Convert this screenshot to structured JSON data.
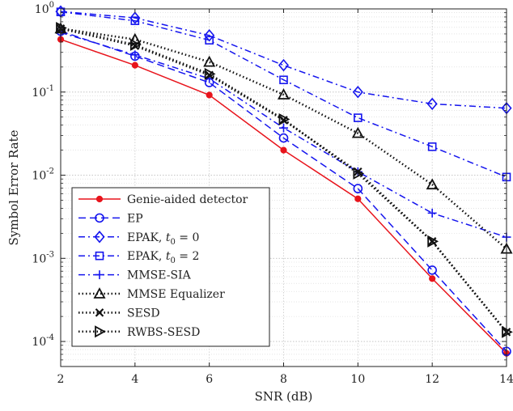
{
  "chart_data": {
    "type": "line",
    "title": "",
    "xlabel": "SNR (dB)",
    "ylabel": "Symbol Error Rate",
    "x": [
      2,
      4,
      6,
      8,
      10,
      12,
      14
    ],
    "xlim": [
      2,
      14
    ],
    "ylim": [
      5e-05,
      1
    ],
    "yscale": "log",
    "grid": true,
    "minor_grid": true,
    "legend_position": "bottom-left",
    "x_ticks": [
      "2",
      "4",
      "6",
      "8",
      "10",
      "12",
      "14"
    ],
    "y_ticks": [
      {
        "value": 0.0001,
        "mantissa": "10",
        "exp": "-4"
      },
      {
        "value": 0.001,
        "mantissa": "10",
        "exp": "-3"
      },
      {
        "value": 0.01,
        "mantissa": "10",
        "exp": "-2"
      },
      {
        "value": 0.1,
        "mantissa": "10",
        "exp": "-1"
      },
      {
        "value": 1,
        "mantissa": "10",
        "exp": "0"
      }
    ],
    "series": [
      {
        "name": "Genie-aided detector",
        "color": "#e8141c",
        "dash": "solid",
        "marker": "dot",
        "values": [
          0.43,
          0.21,
          0.092,
          0.02,
          0.0052,
          0.00057,
          7.2e-05
        ]
      },
      {
        "name": "EP",
        "color": "#1515ee",
        "dash": "dashed",
        "marker": "circle",
        "values": [
          0.54,
          0.27,
          0.13,
          0.028,
          0.0069,
          0.00072,
          7.6e-05
        ]
      },
      {
        "name": "EPAK, t0 = 0",
        "color": "#1515ee",
        "dash": "dashdot",
        "marker": "diamond",
        "values": [
          0.93,
          0.78,
          0.48,
          0.21,
          0.1,
          0.072,
          0.064
        ]
      },
      {
        "name": "EPAK, t0 = 2",
        "color": "#1515ee",
        "dash": "dashdot",
        "marker": "square",
        "values": [
          0.92,
          0.72,
          0.42,
          0.14,
          0.049,
          0.022,
          0.0095
        ]
      },
      {
        "name": "MMSE-SIA",
        "color": "#1515ee",
        "dash": "dashdot",
        "marker": "plus",
        "values": [
          0.52,
          0.28,
          0.145,
          0.037,
          0.011,
          0.0035,
          0.0018
        ]
      },
      {
        "name": "MMSE Equalizer",
        "color": "#111111",
        "dash": "dotted",
        "marker": "triangle-up",
        "values": [
          0.58,
          0.43,
          0.23,
          0.093,
          0.032,
          0.0077,
          0.0013
        ]
      },
      {
        "name": "SESD",
        "color": "#111111",
        "dash": "dotted",
        "marker": "x",
        "values": [
          0.58,
          0.36,
          0.16,
          0.046,
          0.011,
          0.0016,
          0.00013
        ]
      },
      {
        "name": "RWBS-SESD",
        "color": "#111111",
        "dash": "dotted",
        "marker": "triangle-right",
        "values": [
          0.59,
          0.37,
          0.165,
          0.047,
          0.0105,
          0.0016,
          0.00013
        ]
      }
    ]
  }
}
